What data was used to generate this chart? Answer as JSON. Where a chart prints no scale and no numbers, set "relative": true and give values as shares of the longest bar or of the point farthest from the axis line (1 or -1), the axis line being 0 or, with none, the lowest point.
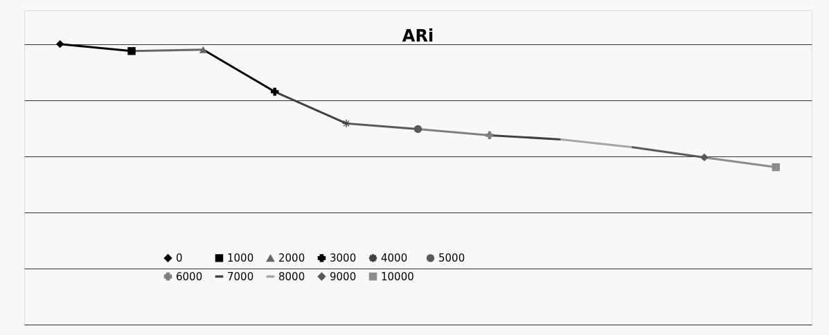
{
  "chart_data": {
    "type": "line",
    "title": "ARi",
    "relative": true,
    "grid": "y",
    "legend": "bottom",
    "line_style": "solid",
    "categories": [
      null,
      null,
      null,
      null,
      null,
      null,
      null,
      null,
      null,
      null,
      null
    ],
    "series": [
      {
        "name": "0",
        "color": "#000000",
        "marker": "diamond",
        "values": [
          1,
          null,
          null,
          null,
          null,
          null,
          null,
          null,
          null,
          null,
          null
        ]
      },
      {
        "name": "1000",
        "color": "#000000",
        "marker": "square",
        "values": [
          1,
          0.975,
          null,
          null,
          null,
          null,
          null,
          null,
          null,
          null,
          null
        ]
      },
      {
        "name": "2000",
        "color": "#666666",
        "marker": "triangle",
        "values": [
          null,
          0.975,
          0.98,
          null,
          null,
          null,
          null,
          null,
          null,
          null,
          null
        ]
      },
      {
        "name": "3000",
        "color": "#000000",
        "marker": "cross",
        "values": [
          null,
          null,
          0.98,
          0.83,
          null,
          null,
          null,
          null,
          null,
          null,
          null
        ]
      },
      {
        "name": "4000",
        "color": "#404040",
        "marker": "star",
        "values": [
          null,
          null,
          null,
          0.83,
          0.717,
          null,
          null,
          null,
          null,
          null,
          null
        ]
      },
      {
        "name": "5000",
        "color": "#595959",
        "marker": "circle",
        "values": [
          null,
          null,
          null,
          null,
          0.717,
          0.697,
          null,
          null,
          null,
          null,
          null
        ]
      },
      {
        "name": "6000",
        "color": "#7f7f7f",
        "marker": "cross",
        "values": [
          null,
          null,
          null,
          null,
          null,
          0.697,
          0.675,
          null,
          null,
          null,
          null
        ]
      },
      {
        "name": "7000",
        "color": "#404040",
        "marker": "none",
        "values": [
          null,
          null,
          null,
          null,
          null,
          null,
          0.675,
          0.66,
          null,
          null,
          null
        ]
      },
      {
        "name": "8000",
        "color": "#a6a6a6",
        "marker": "none",
        "values": [
          null,
          null,
          null,
          null,
          null,
          null,
          null,
          0.66,
          0.632,
          null,
          null
        ]
      },
      {
        "name": "9000",
        "color": "#595959",
        "marker": "diamond",
        "values": [
          null,
          null,
          null,
          null,
          null,
          null,
          null,
          null,
          0.632,
          0.596,
          null
        ]
      },
      {
        "name": "10000",
        "color": "#8c8c8c",
        "marker": "square",
        "values": [
          null,
          null,
          null,
          null,
          null,
          null,
          null,
          null,
          null,
          0.596,
          0.561
        ]
      }
    ]
  }
}
